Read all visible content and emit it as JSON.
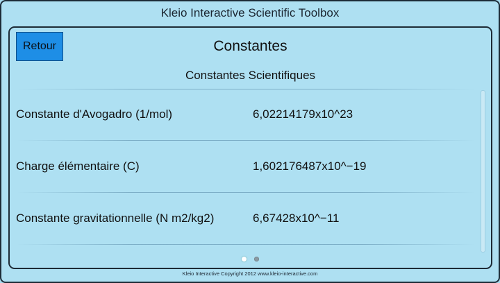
{
  "app": {
    "title": "Kleio Interactive Scientific Toolbox"
  },
  "header": {
    "back_label": "Retour",
    "screen_title": "Constantes"
  },
  "section": {
    "title": "Constantes Scientifiques"
  },
  "constants": [
    {
      "label": "Constante d'Avogadro (1/mol)",
      "value": "6,02214179x10^23"
    },
    {
      "label": "Charge élémentaire (C)",
      "value": "1,602176487x10^−19"
    },
    {
      "label": "Constante gravitationnelle (N m2/kg2)",
      "value": "6,67428x10^−11"
    }
  ],
  "pager": {
    "pages": 2,
    "current": 1
  },
  "footer": {
    "text": "Kleio Interactive  Copyright 2012  www.kleio-interactive.com"
  },
  "colors": {
    "background": "#aee0f2",
    "button": "#1e8ee6",
    "border": "#1d2b36"
  }
}
